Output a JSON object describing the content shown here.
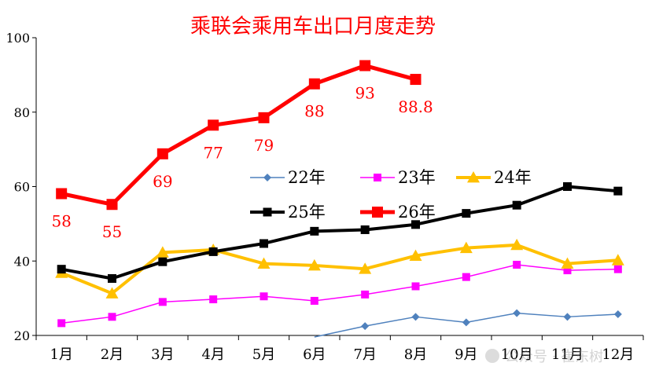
{
  "chart_data": {
    "type": "line",
    "title": "乘联会乘用车出口月度走势",
    "xlabel": "",
    "ylabel": "",
    "categories": [
      "1月",
      "2月",
      "3月",
      "4月",
      "5月",
      "6月",
      "7月",
      "8月",
      "9月",
      "10月",
      "11月",
      "12月"
    ],
    "ylim": [
      20,
      100
    ],
    "yticks": [
      20,
      40,
      60,
      80,
      100
    ],
    "grid": false,
    "legend_position": "center-right",
    "series": [
      {
        "name": "22年",
        "color": "#4f81bd",
        "marker": "diamond",
        "width": 1.5,
        "values": [
          null,
          null,
          null,
          null,
          null,
          19,
          22.5,
          25,
          23.5,
          26,
          25,
          25.7
        ]
      },
      {
        "name": "23年",
        "color": "#ff00ff",
        "marker": "square",
        "width": 1.5,
        "values": [
          23.3,
          25,
          29,
          29.7,
          30.5,
          29.3,
          31,
          33.2,
          35.7,
          39,
          37.5,
          37.8
        ]
      },
      {
        "name": "24年",
        "color": "#ffc000",
        "marker": "triangle",
        "width": 4,
        "values": [
          36.8,
          31.3,
          42.3,
          43,
          39.3,
          38.8,
          37.9,
          41.4,
          43.5,
          44.3,
          39.3,
          40.2
        ]
      },
      {
        "name": "25年",
        "color": "#000000",
        "marker": "square",
        "width": 4,
        "values": [
          37.8,
          35.3,
          39.8,
          42.5,
          44.7,
          48,
          48.4,
          49.8,
          52.8,
          55,
          60,
          58.8
        ]
      },
      {
        "name": "26年",
        "color": "#ff0000",
        "marker": "square",
        "width": 5,
        "values": [
          58.1,
          55.2,
          68.8,
          76.5,
          78.5,
          87.6,
          92.5,
          88.8,
          null,
          null,
          null,
          null
        ],
        "data_labels": [
          "58",
          "55",
          "69",
          "77",
          "79",
          "88",
          "93",
          "88.8"
        ]
      }
    ]
  },
  "watermark": "公众号 · 崔东树"
}
